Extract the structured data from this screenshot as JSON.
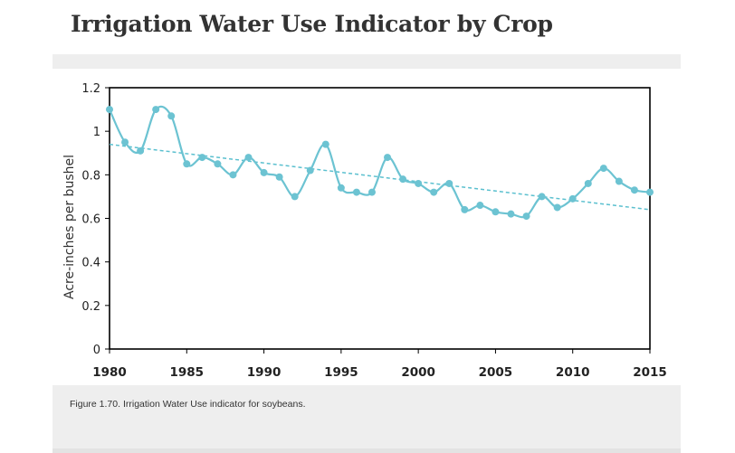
{
  "page": {
    "title": "Irrigation Water Use Indicator by Crop"
  },
  "caption": "Figure 1.70. Irrigation Water Use indicator for soybeans.",
  "colors": {
    "series": "#6cc3d2",
    "trend": "#5bc0cf",
    "axis": "#000000",
    "panel": "#eeeeee"
  },
  "chart_data": {
    "type": "line",
    "title": "",
    "xlabel": "",
    "ylabel": "Acre-inches per bushel",
    "xlim": [
      1980,
      2015
    ],
    "ylim": [
      0,
      1.2
    ],
    "x_ticks": [
      "1980",
      "1985",
      "1990",
      "1995",
      "2000",
      "2005",
      "2010",
      "2015"
    ],
    "y_ticks": [
      "0",
      "0.2",
      "0.4",
      "0.6",
      "0.8",
      "1",
      "1.2"
    ],
    "grid": false,
    "legend": "none",
    "series": [
      {
        "x": [
          1980,
          1981,
          1982,
          1983,
          1984,
          1985,
          1986,
          1987,
          1988,
          1989,
          1990,
          1991,
          1992,
          1993,
          1994,
          1995,
          1996,
          1997,
          1998,
          1999,
          2000,
          2001,
          2002,
          2003,
          2004,
          2005,
          2006,
          2007,
          2008,
          2009,
          2010,
          2011,
          2012,
          2013,
          2014,
          2015
        ],
        "values": [
          1.1,
          0.95,
          0.91,
          1.1,
          1.07,
          0.85,
          0.88,
          0.85,
          0.8,
          0.88,
          0.81,
          0.79,
          0.7,
          0.82,
          0.94,
          0.74,
          0.72,
          0.72,
          0.88,
          0.78,
          0.76,
          0.72,
          0.76,
          0.64,
          0.66,
          0.63,
          0.62,
          0.61,
          0.7,
          0.65,
          0.69,
          0.76,
          0.83,
          0.77,
          0.73,
          0.72
        ]
      }
    ],
    "trendline": {
      "x": [
        1980,
        2015
      ],
      "values": [
        0.94,
        0.64
      ]
    }
  }
}
